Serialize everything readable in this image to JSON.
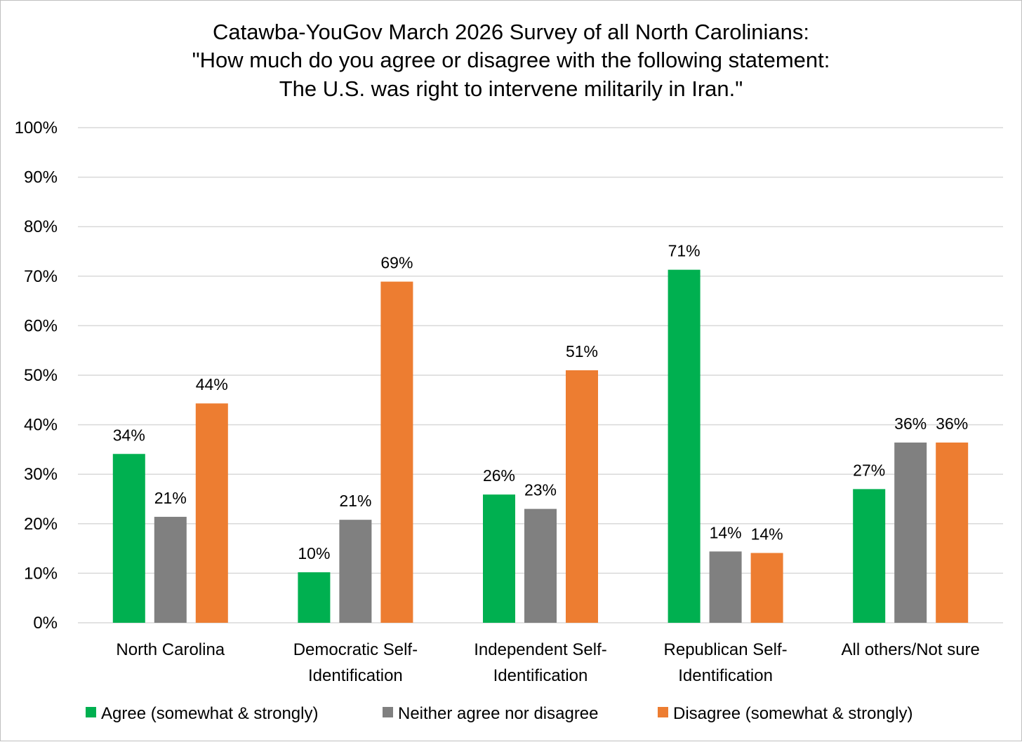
{
  "chart_data": {
    "type": "bar",
    "title": [
      "Catawba-YouGov March 2026 Survey of all North Carolinians:",
      "\"How much do you agree or disagree with the following statement:",
      "The U.S. was right to intervene militarily in Iran.\""
    ],
    "categories": [
      [
        "North Carolina"
      ],
      [
        "Democratic Self-",
        "Identification"
      ],
      [
        "Independent Self-",
        "Identification"
      ],
      [
        "Republican Self-",
        "Identification"
      ],
      [
        "All others/Not sure"
      ]
    ],
    "series": [
      {
        "name": "Agree (somewhat & strongly)",
        "color": "#00b050",
        "values": [
          34.1,
          10.2,
          25.9,
          71.3,
          27.0
        ],
        "labels": [
          "34%",
          "10%",
          "26%",
          "71%",
          "27%"
        ]
      },
      {
        "name": "Neither agree nor disagree",
        "color": "#808080",
        "values": [
          21.4,
          20.8,
          23.0,
          14.4,
          36.4
        ],
        "labels": [
          "21%",
          "21%",
          "23%",
          "14%",
          "36%"
        ]
      },
      {
        "name": "Disagree (somewhat & strongly)",
        "color": "#ed7d31",
        "values": [
          44.3,
          68.9,
          51.0,
          14.1,
          36.4
        ],
        "labels": [
          "44%",
          "69%",
          "51%",
          "14%",
          "36%"
        ]
      }
    ],
    "yticks": [
      "0%",
      "10%",
      "20%",
      "30%",
      "40%",
      "50%",
      "60%",
      "70%",
      "80%",
      "90%",
      "100%"
    ],
    "ylim": [
      0,
      100
    ],
    "grid": true,
    "legend_position": "bottom"
  }
}
